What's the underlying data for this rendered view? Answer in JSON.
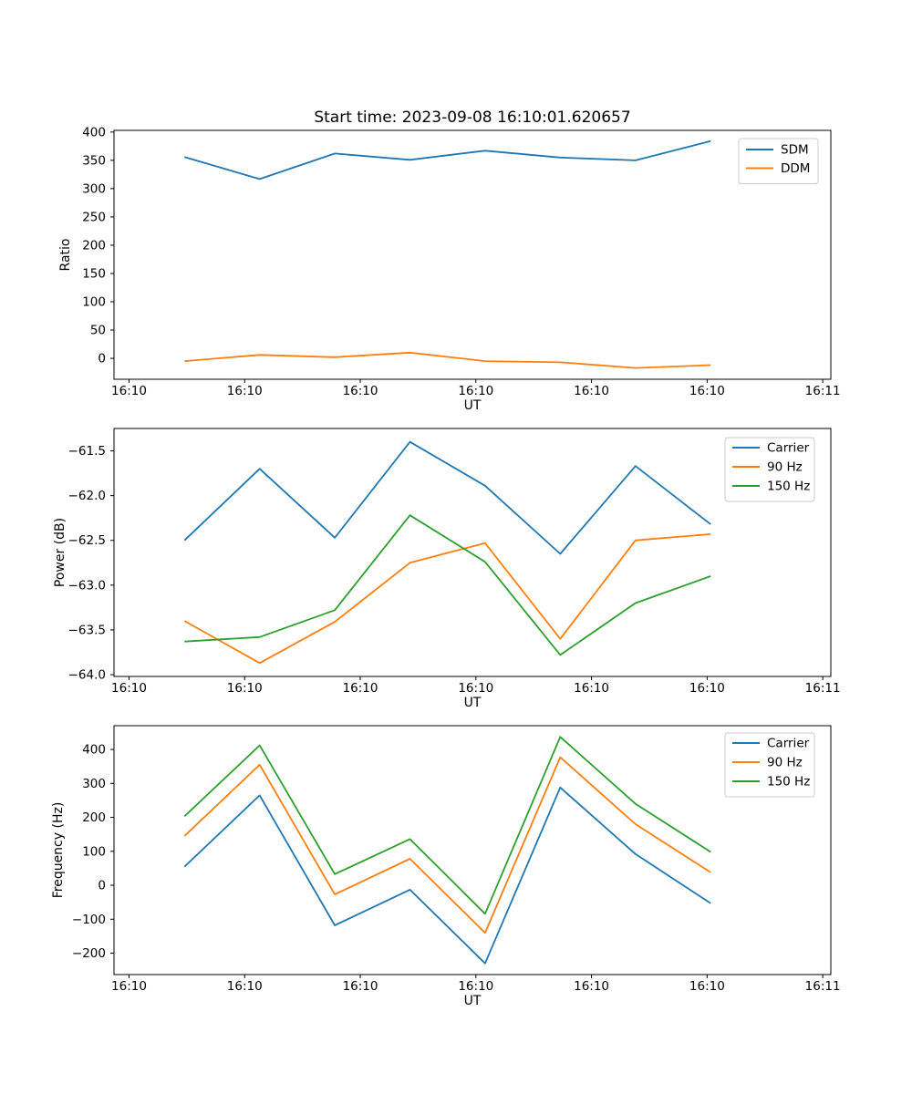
{
  "figure_title": "Start time: 2023-09-08 16:10:01.620657",
  "colors": {
    "blue": "#1f77b4",
    "orange": "#ff7f0e",
    "green": "#2ca02c",
    "axis": "#000000",
    "legend_border": "#cccccc"
  },
  "chart_data": [
    {
      "type": "line",
      "title": "Start time: 2023-09-08 16:10:01.620657",
      "xlabel": "UT",
      "ylabel": "Ratio",
      "x_units": "seconds after 16:10:00",
      "x": [
        4.8,
        11.3,
        17.8,
        24.3,
        30.8,
        37.3,
        43.8,
        50.3
      ],
      "xlim": [
        -1.3,
        60.7
      ],
      "x_tick_values": [
        0,
        10,
        20,
        30,
        40,
        50,
        60
      ],
      "x_tick_labels": [
        "16:10",
        "16:10",
        "16:10",
        "16:10",
        "16:10",
        "16:10",
        "16:11"
      ],
      "ylim": [
        -37,
        403
      ],
      "y_tick_values": [
        0,
        50,
        100,
        150,
        200,
        250,
        300,
        350,
        400
      ],
      "y_tick_labels": [
        "0",
        "50",
        "100",
        "150",
        "200",
        "250",
        "300",
        "350",
        "400"
      ],
      "grid": false,
      "legend_position": "upper right",
      "series": [
        {
          "name": "SDM",
          "color": "#1f77b4",
          "values": [
            356,
            317,
            362,
            351,
            367,
            355,
            350,
            384
          ]
        },
        {
          "name": "DDM",
          "color": "#ff7f0e",
          "values": [
            -5,
            6,
            2,
            10,
            -5,
            -7,
            -17,
            -12
          ]
        }
      ]
    },
    {
      "type": "line",
      "title": "",
      "xlabel": "UT",
      "ylabel": "Power (dB)",
      "x_units": "seconds after 16:10:00",
      "x": [
        4.8,
        11.3,
        17.8,
        24.3,
        30.8,
        37.3,
        43.8,
        50.3
      ],
      "xlim": [
        -1.3,
        60.7
      ],
      "x_tick_values": [
        0,
        10,
        20,
        30,
        40,
        50,
        60
      ],
      "x_tick_labels": [
        "16:10",
        "16:10",
        "16:10",
        "16:10",
        "16:10",
        "16:10",
        "16:11"
      ],
      "ylim": [
        -64.02,
        -61.25
      ],
      "y_tick_values": [
        -64.0,
        -63.5,
        -63.0,
        -62.5,
        -62.0,
        -61.5
      ],
      "y_tick_labels": [
        "−64.0",
        "−63.5",
        "−63.0",
        "−62.5",
        "−62.0",
        "−61.5"
      ],
      "grid": false,
      "legend_position": "upper right",
      "series": [
        {
          "name": "Carrier",
          "color": "#1f77b4",
          "values": [
            -62.5,
            -61.7,
            -62.47,
            -61.4,
            -61.89,
            -62.65,
            -61.67,
            -62.32
          ]
        },
        {
          "name": "90 Hz",
          "color": "#ff7f0e",
          "values": [
            -63.4,
            -63.87,
            -63.41,
            -62.75,
            -62.53,
            -63.6,
            -62.5,
            -62.43
          ]
        },
        {
          "name": "150 Hz",
          "color": "#2ca02c",
          "values": [
            -63.63,
            -63.58,
            -63.28,
            -62.22,
            -62.74,
            -63.78,
            -63.2,
            -62.9
          ]
        }
      ]
    },
    {
      "type": "line",
      "title": "",
      "xlabel": "UT",
      "ylabel": "Frequency (Hz)",
      "x_units": "seconds after 16:10:00",
      "x": [
        4.8,
        11.3,
        17.8,
        24.3,
        30.8,
        37.3,
        43.8,
        50.3
      ],
      "xlim": [
        -1.3,
        60.7
      ],
      "x_tick_values": [
        0,
        10,
        20,
        30,
        40,
        50,
        60
      ],
      "x_tick_labels": [
        "16:10",
        "16:10",
        "16:10",
        "16:10",
        "16:10",
        "16:10",
        "16:11"
      ],
      "ylim": [
        -263,
        470
      ],
      "y_tick_values": [
        -200,
        -100,
        0,
        100,
        200,
        300,
        400
      ],
      "y_tick_labels": [
        "−200",
        "−100",
        "0",
        "100",
        "200",
        "300",
        "400"
      ],
      "grid": false,
      "legend_position": "upper right",
      "series": [
        {
          "name": "Carrier",
          "color": "#1f77b4",
          "values": [
            55,
            265,
            -118,
            -13,
            -230,
            288,
            92,
            -53
          ]
        },
        {
          "name": "90 Hz",
          "color": "#ff7f0e",
          "values": [
            145,
            355,
            -27,
            78,
            -140,
            377,
            180,
            38
          ]
        },
        {
          "name": "150 Hz",
          "color": "#2ca02c",
          "values": [
            203,
            412,
            33,
            136,
            -84,
            437,
            240,
            98
          ]
        }
      ]
    }
  ]
}
